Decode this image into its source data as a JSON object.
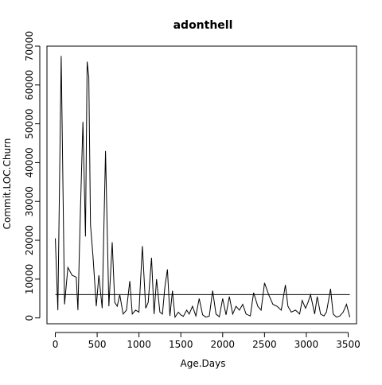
{
  "chart_data": {
    "type": "line",
    "title": "adonthell",
    "xlabel": "Age.Days",
    "ylabel": "Commit.LOC.Churn",
    "xlim": [
      -100,
      3600
    ],
    "ylim": [
      -1500,
      70000
    ],
    "x_ticks": [
      0,
      500,
      1000,
      1500,
      2000,
      2500,
      3000,
      3500
    ],
    "x_tick_labels": [
      "0",
      "500",
      "1000",
      "1500",
      "2000",
      "2500",
      "3000",
      "3500"
    ],
    "y_ticks": [
      0,
      10000,
      20000,
      30000,
      40000,
      50000,
      60000,
      70000
    ],
    "y_tick_labels": [
      "0",
      "10000",
      "20000",
      "30000",
      "40000",
      "50000",
      "60000",
      "70000"
    ],
    "grid": false,
    "reference_line": 6000,
    "series": [
      {
        "x": [
          0,
          30,
          70,
          110,
          150,
          200,
          250,
          270,
          300,
          330,
          360,
          380,
          400,
          420,
          450,
          490,
          520,
          560,
          600,
          640,
          680,
          710,
          740,
          770,
          810,
          850,
          890,
          920,
          960,
          1000,
          1040,
          1080,
          1110,
          1150,
          1180,
          1210,
          1250,
          1280,
          1310,
          1340,
          1370,
          1400,
          1430,
          1470,
          1500,
          1530,
          1570,
          1600,
          1640,
          1680,
          1720,
          1760,
          1800,
          1840,
          1880,
          1920,
          1960,
          2000,
          2040,
          2080,
          2120,
          2160,
          2200,
          2240,
          2280,
          2330,
          2370,
          2420,
          2460,
          2500,
          2550,
          2600,
          2650,
          2700,
          2750,
          2780,
          2820,
          2870,
          2920,
          2950,
          2990,
          3020,
          3050,
          3100,
          3130,
          3170,
          3210,
          3240,
          3290,
          3320,
          3360,
          3400,
          3440,
          3480,
          3520
        ],
        "values": [
          20500,
          2000,
          67500,
          3500,
          13000,
          11000,
          10500,
          2000,
          28000,
          50500,
          21000,
          66000,
          62000,
          24000,
          16000,
          3000,
          11000,
          2500,
          43000,
          3000,
          19500,
          4000,
          3000,
          6000,
          1000,
          2000,
          9500,
          1000,
          2000,
          1500,
          18500,
          2500,
          4000,
          15500,
          1000,
          10000,
          1500,
          1000,
          8000,
          12500,
          500,
          7000,
          200,
          1500,
          800,
          400,
          2000,
          1000,
          3000,
          500,
          5000,
          800,
          200,
          500,
          7000,
          1000,
          300,
          5000,
          800,
          5500,
          1000,
          3000,
          2000,
          3500,
          1000,
          500,
          6500,
          3000,
          2000,
          9000,
          6000,
          3500,
          3000,
          2000,
          8500,
          3000,
          1500,
          2000,
          1000,
          4500,
          2500,
          4000,
          6000,
          1000,
          5500,
          1000,
          500,
          1500,
          7500,
          1000,
          200,
          500,
          1500,
          3500,
          200
        ]
      }
    ]
  }
}
